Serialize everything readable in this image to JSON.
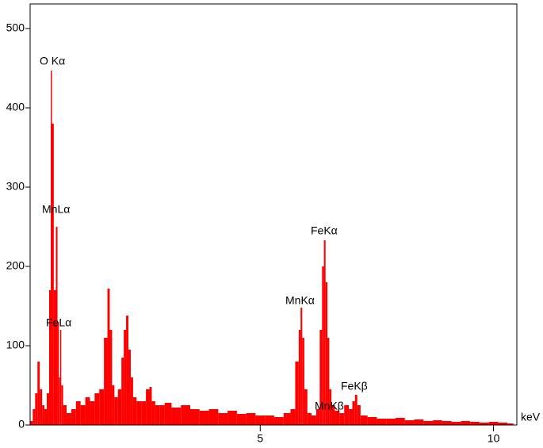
{
  "chart_data": {
    "type": "spectrum",
    "x_label": "keV",
    "color": "#ff0000",
    "xlim": [
      0,
      10.5
    ],
    "xticks": [
      5,
      10
    ],
    "ylim": [
      0,
      531
    ],
    "yticks": [
      0,
      100,
      200,
      300,
      400,
      500
    ],
    "annotations": [
      "O Kα",
      "MnLα",
      "FeLα",
      "MnKα",
      "FeKα",
      "MnKβ",
      "FeKβ"
    ],
    "x": [
      0.1,
      0.15,
      0.2,
      0.25,
      0.3,
      0.35,
      0.4,
      0.45,
      0.5,
      0.52,
      0.55,
      0.6,
      0.64,
      0.67,
      0.7,
      0.72,
      0.75,
      0.8,
      0.9,
      1.0,
      1.1,
      1.2,
      1.3,
      1.4,
      1.5,
      1.6,
      1.7,
      1.75,
      1.8,
      1.85,
      1.9,
      2.0,
      2.05,
      2.1,
      2.15,
      2.2,
      2.25,
      2.3,
      2.4,
      2.5,
      2.6,
      2.65,
      2.7,
      2.8,
      2.9,
      3.0,
      3.2,
      3.4,
      3.6,
      3.8,
      4.0,
      4.2,
      4.4,
      4.6,
      4.8,
      5.0,
      5.2,
      5.4,
      5.6,
      5.7,
      5.8,
      5.85,
      5.88,
      5.92,
      5.97,
      6.05,
      6.15,
      6.25,
      6.3,
      6.35,
      6.38,
      6.42,
      6.46,
      6.5,
      6.55,
      6.65,
      6.75,
      6.85,
      6.95,
      7.0,
      7.06,
      7.1,
      7.2,
      7.4,
      7.6,
      7.8,
      8.0,
      8.2,
      8.4,
      8.6,
      8.8,
      9.0,
      9.2,
      9.4,
      9.6,
      9.8,
      10.0,
      10.2,
      10.4
    ],
    "values": [
      5,
      20,
      40,
      80,
      45,
      25,
      20,
      40,
      170,
      447,
      380,
      170,
      250,
      130,
      60,
      120,
      50,
      25,
      15,
      20,
      30,
      25,
      35,
      30,
      40,
      45,
      110,
      172,
      120,
      50,
      35,
      45,
      85,
      120,
      138,
      95,
      60,
      35,
      30,
      30,
      45,
      48,
      30,
      25,
      25,
      28,
      22,
      25,
      20,
      18,
      20,
      15,
      18,
      14,
      15,
      12,
      12,
      10,
      15,
      20,
      80,
      120,
      148,
      110,
      45,
      15,
      12,
      20,
      120,
      200,
      233,
      180,
      110,
      45,
      25,
      18,
      15,
      25,
      20,
      30,
      38,
      25,
      12,
      10,
      8,
      8,
      9,
      6,
      7,
      5,
      6,
      5,
      4,
      5,
      4,
      3,
      4,
      3,
      2
    ]
  }
}
